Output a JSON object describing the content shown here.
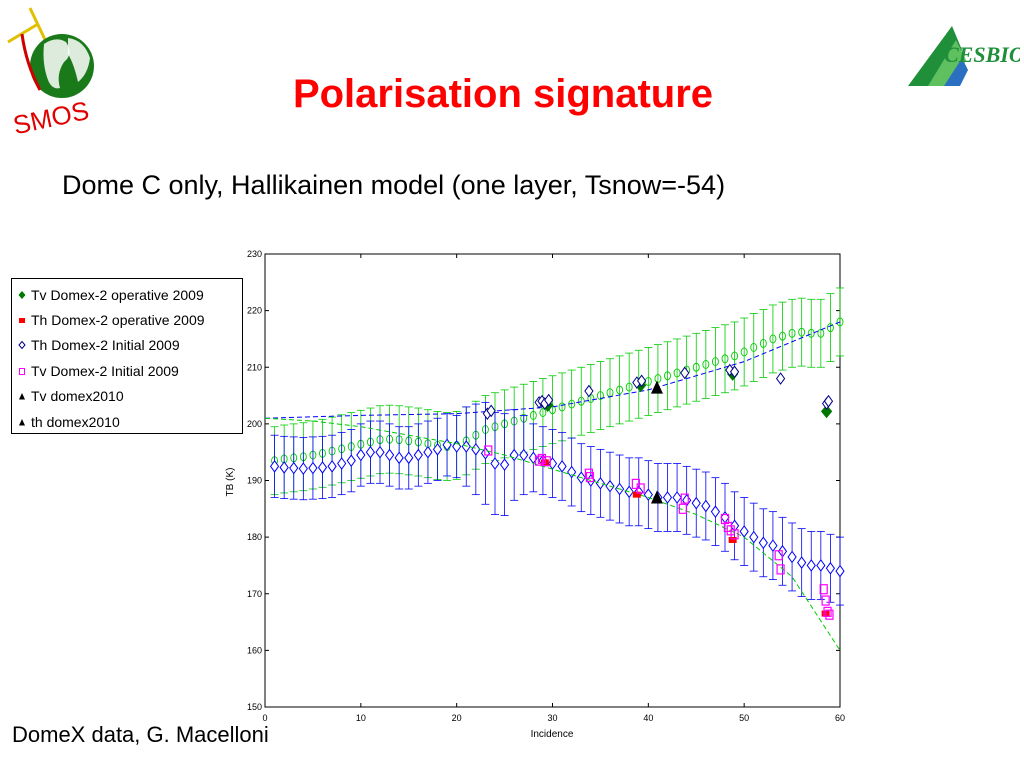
{
  "slide": {
    "title": "Polarisation signature",
    "subtitle": "Dome C only, Hallikainen model (one layer, Tsnow=-54)",
    "footer": "DomeX data, G. Macelloni"
  },
  "logos": {
    "left": "SMOS",
    "right": "CESBIO"
  },
  "colors": {
    "title": "#ff0000",
    "green": "#00cc00",
    "blue": "#0000ff",
    "magenta": "#ff00ff",
    "red": "#ff0000",
    "darkgreen": "#007700",
    "navy": "#000088",
    "black": "#000000"
  },
  "chart_data": {
    "type": "scatter",
    "title": "",
    "xlabel": "Incidence",
    "ylabel": "TB (K)",
    "xlim": [
      0,
      60
    ],
    "ylim": [
      150,
      230
    ],
    "xticks": [
      0,
      10,
      20,
      30,
      40,
      50,
      60
    ],
    "yticks": [
      150,
      160,
      170,
      180,
      190,
      200,
      210,
      220,
      230
    ],
    "grid": false,
    "legend_placement": "left, outside plot",
    "legend": [
      {
        "name": "Tv Domex-2 operative 2009",
        "marker": "diamond-filled",
        "color": "#007700"
      },
      {
        "name": "Th Domex-2 operative 2009",
        "marker": "square-filled",
        "color": "#ff0000"
      },
      {
        "name": "Th Domex-2 Initial 2009",
        "marker": "diamond-open",
        "color": "#000088"
      },
      {
        "name": "Tv Domex-2 Initial 2009",
        "marker": "square-open",
        "color": "#ff00ff"
      },
      {
        "name": "Tv domex2010",
        "marker": "triangle-filled",
        "color": "#000000"
      },
      {
        "name": "th domex2010",
        "marker": "triangle-filled",
        "color": "#000000"
      }
    ],
    "series": [
      {
        "color": "#00cc00",
        "marker": "circle-open",
        "errorbars": true,
        "x": [
          1,
          2,
          3,
          4,
          5,
          6,
          7,
          8,
          9,
          10,
          11,
          12,
          13,
          14,
          15,
          16,
          17,
          18,
          19,
          20,
          21,
          22,
          23,
          24,
          25,
          26,
          27,
          28,
          29,
          30,
          31,
          32,
          33,
          34,
          35,
          36,
          37,
          38,
          39,
          40,
          41,
          42,
          43,
          44,
          45,
          46,
          47,
          48,
          49,
          50,
          51,
          52,
          53,
          54,
          55,
          56,
          57,
          58,
          59,
          60
        ],
        "y": [
          193.5,
          193.8,
          194,
          194.2,
          194.5,
          194.8,
          195.2,
          195.6,
          196,
          196.4,
          196.8,
          197.2,
          197.3,
          197.2,
          197,
          196.8,
          196.5,
          196.2,
          196,
          196.2,
          197,
          198,
          199,
          199.5,
          200,
          200.5,
          201,
          201.5,
          202,
          202.5,
          203,
          203.5,
          204,
          204.5,
          205,
          205.5,
          206,
          206.5,
          207,
          207.5,
          208,
          208.5,
          209,
          209.5,
          210,
          210.5,
          211,
          211.5,
          212,
          212.7,
          213.5,
          214.2,
          215,
          215.5,
          216,
          216.2,
          216,
          216,
          217,
          218
        ],
        "err": [
          6,
          6,
          6,
          6,
          6,
          6,
          6,
          6,
          6,
          6,
          6,
          6,
          6,
          6,
          6,
          6,
          6,
          6,
          6,
          6,
          6,
          6,
          6,
          6,
          6,
          6,
          6,
          6,
          6,
          6,
          6,
          6,
          6,
          6,
          6,
          6,
          6,
          6,
          6,
          6,
          6,
          6,
          6,
          6,
          6,
          6,
          6,
          6,
          6,
          6,
          6,
          6,
          6,
          6,
          6,
          6,
          6,
          6,
          6,
          6
        ]
      },
      {
        "color": "#0000ff",
        "marker": "diamond-open",
        "errorbars": true,
        "x": [
          1,
          2,
          3,
          4,
          5,
          6,
          7,
          8,
          9,
          10,
          11,
          12,
          13,
          14,
          15,
          16,
          17,
          18,
          19,
          20,
          21,
          22,
          23,
          24,
          25,
          26,
          27,
          28,
          29,
          30,
          31,
          32,
          33,
          34,
          35,
          36,
          37,
          38,
          39,
          40,
          41,
          42,
          43,
          44,
          45,
          46,
          47,
          48,
          49,
          50,
          51,
          52,
          53,
          54,
          55,
          56,
          57,
          58,
          59,
          60
        ],
        "y": [
          192.5,
          192.3,
          192.2,
          192.1,
          192.2,
          192.3,
          192.5,
          193,
          193.5,
          194.5,
          195,
          195,
          194.5,
          194,
          194,
          194.5,
          195,
          195.5,
          196.3,
          196,
          196,
          195.5,
          194.8,
          193,
          192.8,
          194.5,
          194.5,
          194,
          193.5,
          193,
          192.5,
          191.5,
          190.5,
          190,
          189.5,
          189,
          188.5,
          188,
          188,
          187.5,
          187,
          187,
          187,
          186.5,
          186,
          185.5,
          184.5,
          183.5,
          182,
          181,
          180,
          179,
          178.5,
          177.5,
          176.5,
          175.5,
          175,
          175,
          174.5,
          174
        ],
        "err": [
          5.5,
          5.5,
          5.5,
          5.5,
          5.5,
          5.5,
          5.5,
          5.5,
          5.5,
          5.5,
          5.5,
          5.5,
          5.5,
          5.5,
          5.5,
          5.5,
          5.5,
          5.5,
          5.5,
          5.5,
          7,
          8,
          9,
          9,
          9,
          8,
          7,
          6,
          6,
          6,
          6,
          6,
          6,
          6,
          6,
          6,
          6,
          6,
          6,
          6,
          6,
          6,
          6,
          6,
          6,
          6,
          6,
          6,
          6,
          6,
          6,
          6,
          6,
          6,
          6,
          6,
          6,
          6,
          6,
          6
        ]
      },
      {
        "color": "#0000ff",
        "line": "dashed",
        "x": [
          0,
          10,
          20,
          30,
          40,
          50,
          60
        ],
        "y": [
          201,
          201.5,
          201.8,
          203,
          206,
          211,
          218
        ]
      },
      {
        "color": "#00cc00",
        "line": "dashed",
        "x": [
          0,
          5,
          10,
          15,
          20,
          25,
          30,
          35,
          40,
          45,
          50,
          55,
          60
        ],
        "y": [
          201,
          200.5,
          199.5,
          198,
          196.5,
          194.5,
          192,
          189.5,
          187,
          184,
          180,
          173,
          160
        ]
      },
      {
        "name": "Tv Domex-2 operative 2009",
        "color": "#007700",
        "marker": "diamond-filled",
        "x": [
          29.5,
          39.2,
          48.8,
          58.6
        ],
        "y": [
          203.3,
          206.8,
          208.8,
          202.2
        ]
      },
      {
        "name": "Th Domex-2 operative 2009",
        "color": "#ff0000",
        "marker": "square-filled",
        "x": [
          29.2,
          38.8,
          48.8,
          58.5
        ],
        "y": [
          193.2,
          187.5,
          179.5,
          166.5
        ]
      },
      {
        "name": "Th Domex-2 Initial 2009",
        "color": "#000088",
        "marker": "diamond-open",
        "x": [
          23.2,
          23.6,
          28.6,
          28.9,
          29.2,
          29.6,
          33.8,
          38.8,
          39.3,
          43.8,
          48.5,
          49,
          53.8,
          58.6,
          58.8
        ],
        "y": [
          201.8,
          202.3,
          203.8,
          204,
          203.6,
          204.2,
          205.8,
          207.3,
          207.6,
          209,
          209.5,
          209.2,
          208,
          203.6,
          204
        ]
      },
      {
        "name": "Tv Domex-2 Initial 2009",
        "color": "#ff00ff",
        "marker": "square-open",
        "x": [
          23.3,
          28.6,
          28.9,
          29.4,
          33.8,
          33.9,
          38.7,
          39.2,
          43.6,
          43.8,
          48,
          48.3,
          48.6,
          49,
          53.6,
          53.8,
          58.3,
          58.5,
          58.7,
          58.9
        ],
        "y": [
          195.3,
          193.5,
          193.8,
          193.4,
          191.2,
          190.6,
          189.4,
          188.6,
          185,
          186.8,
          183.2,
          181.8,
          181.2,
          180.5,
          176.8,
          174.3,
          170.8,
          168.8,
          166.8,
          166.3
        ]
      },
      {
        "name": "Tv domex2010",
        "color": "#000000",
        "marker": "triangle-filled",
        "x": [
          40.9
        ],
        "y": [
          206.4
        ]
      },
      {
        "name": "th domex2010",
        "color": "#000000",
        "marker": "triangle-filled",
        "x": [
          40.9
        ],
        "y": [
          187
        ]
      }
    ]
  }
}
